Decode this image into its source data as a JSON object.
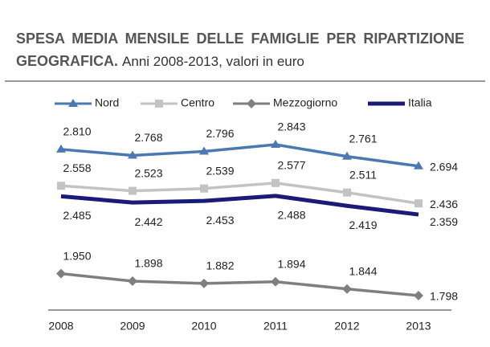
{
  "chart_data": {
    "type": "line",
    "title": "SPESA MEDIA MENSILE DELLE FAMIGLIE PER RIPARTIZIONE GEOGRAFICA.",
    "subtitle": "Anni 2008-2013, valori in euro",
    "categories": [
      "2008",
      "2009",
      "2010",
      "2011",
      "2012",
      "2013"
    ],
    "series": [
      {
        "name": "Nord",
        "color": "#4a78b0",
        "marker": "triangle",
        "values": [
          2810,
          2768,
          2796,
          2843,
          2761,
          2694
        ],
        "value_labels": [
          "2.810",
          "2.768",
          "2.796",
          "2.843",
          "2.761",
          "2.694"
        ]
      },
      {
        "name": "Centro",
        "color": "#c3c3c3",
        "marker": "square",
        "values": [
          2558,
          2523,
          2539,
          2577,
          2511,
          2436
        ],
        "value_labels": [
          "2.558",
          "2.523",
          "2.539",
          "2.577",
          "2.511",
          "2.436"
        ]
      },
      {
        "name": "Mezzogiorno",
        "color": "#7f7f7f",
        "marker": "diamond",
        "values": [
          1950,
          1898,
          1882,
          1894,
          1844,
          1798
        ],
        "value_labels": [
          "1.950",
          "1.898",
          "1.882",
          "1.894",
          "1.844",
          "1.798"
        ]
      },
      {
        "name": "Italia",
        "color": "#1a1a78",
        "marker": "none",
        "values": [
          2485,
          2442,
          2453,
          2488,
          2419,
          2359
        ],
        "value_labels": [
          "2.485",
          "2.442",
          "2.453",
          "2.488",
          "2.419",
          "2.359"
        ]
      }
    ],
    "legend": "top"
  }
}
